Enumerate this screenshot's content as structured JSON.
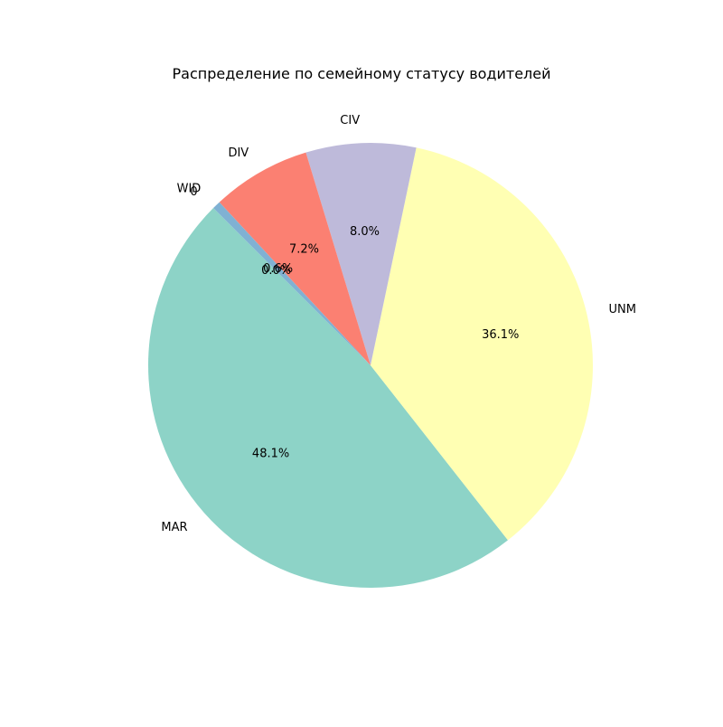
{
  "chart_data": {
    "type": "pie",
    "title": "Распределение по семейному статусу водителей",
    "categories": [
      "MAR",
      "UNM",
      "CIV",
      "DIV",
      "WID",
      "0"
    ],
    "values": [
      48.1,
      36.1,
      8.0,
      7.2,
      0.6,
      0.0
    ],
    "value_labels": [
      "48.1%",
      "36.1%",
      "8.0%",
      "7.2%",
      "0.6%",
      "0.0%"
    ],
    "colors": [
      "#8dd3c7",
      "#ffffb3",
      "#bebada",
      "#fb8072",
      "#80b1d3",
      "#fdb462"
    ],
    "legend": "none"
  }
}
